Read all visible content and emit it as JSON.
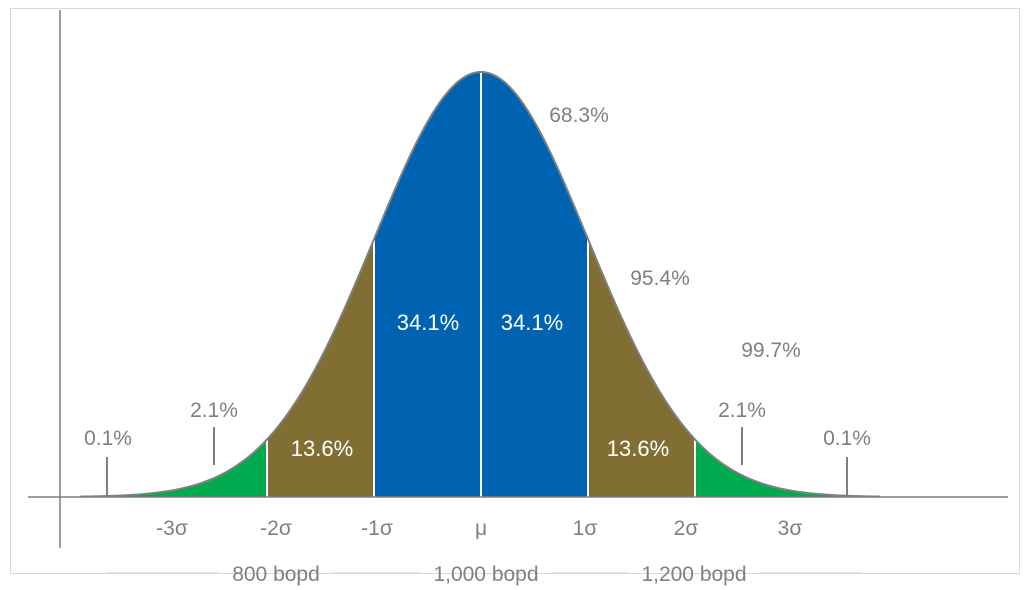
{
  "colors": {
    "center": "#0063b1",
    "middle": "#806e33",
    "tail": "#00aa4f",
    "axis": "#7f7f7f",
    "text": "#808080"
  },
  "regions": {
    "center_left": "34.1%",
    "center_right": "34.1%",
    "middle_left": "13.6%",
    "middle_right": "13.6%"
  },
  "outer_labels": {
    "left_tail_outer": "0.1%",
    "left_tail_inner": "2.1%",
    "right_tail_inner": "2.1%",
    "right_tail_outer": "0.1%",
    "within_1sigma": "68.3%",
    "within_2sigma": "95.4%",
    "within_3sigma": "99.7%"
  },
  "x_ticks": [
    "-3σ",
    "-2σ",
    "-1σ",
    "μ",
    "1σ",
    "2σ",
    "3σ"
  ],
  "bopd_labels": [
    "800 bopd",
    "1,000 bopd",
    "1,200 bopd"
  ]
}
